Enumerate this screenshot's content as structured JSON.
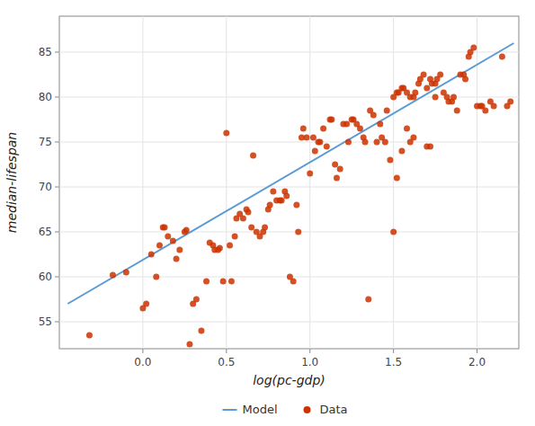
{
  "chart_data": {
    "type": "scatter",
    "xlabel": "log(pc-gdp)",
    "ylabel": "median-lifespan",
    "xlim": [
      -0.5,
      2.25
    ],
    "ylim": [
      52,
      89
    ],
    "xticks": [
      {
        "value": 0.0,
        "label": "0.0"
      },
      0.5,
      {
        "value": 1.0,
        "label": "1.0"
      },
      1.5,
      {
        "value": 2.0,
        "label": "2.0"
      }
    ],
    "yticks": [
      55,
      60,
      65,
      70,
      75,
      80,
      85
    ],
    "grid": true,
    "legend": "bottom",
    "series": [
      {
        "name": "Model",
        "type": "line",
        "color": "#5b9bd5",
        "x": [
          -0.45,
          2.22
        ],
        "values": [
          57.0,
          86.0
        ]
      },
      {
        "name": "Data",
        "type": "scatter",
        "marker": "circle",
        "color": "#cc3300",
        "x": [
          -0.32,
          -0.18,
          -0.1,
          0.0,
          0.02,
          0.05,
          0.08,
          0.1,
          0.12,
          0.13,
          0.15,
          0.18,
          0.2,
          0.22,
          0.25,
          0.26,
          0.28,
          0.3,
          0.32,
          0.35,
          0.38,
          0.4,
          0.42,
          0.43,
          0.45,
          0.46,
          0.48,
          0.5,
          0.52,
          0.53,
          0.55,
          0.56,
          0.58,
          0.6,
          0.62,
          0.63,
          0.65,
          0.66,
          0.68,
          0.7,
          0.72,
          0.73,
          0.75,
          0.76,
          0.78,
          0.8,
          0.82,
          0.83,
          0.85,
          0.86,
          0.88,
          0.9,
          0.92,
          0.93,
          0.95,
          0.96,
          0.98,
          1.0,
          1.02,
          1.03,
          1.05,
          1.06,
          1.08,
          1.1,
          1.12,
          1.13,
          1.15,
          1.16,
          1.18,
          1.2,
          1.22,
          1.23,
          1.25,
          1.26,
          1.28,
          1.3,
          1.32,
          1.33,
          1.35,
          1.36,
          1.38,
          1.4,
          1.42,
          1.43,
          1.45,
          1.46,
          1.48,
          1.5,
          1.52,
          1.53,
          1.55,
          1.56,
          1.58,
          1.6,
          1.62,
          1.63,
          1.65,
          1.66,
          1.68,
          1.7,
          1.72,
          1.73,
          1.75,
          1.76,
          1.78,
          1.5,
          1.52,
          1.55,
          1.58,
          1.6,
          1.62,
          1.7,
          1.72,
          1.75,
          1.8,
          1.82,
          1.83,
          1.85,
          1.86,
          1.88,
          1.9,
          1.92,
          1.93,
          1.95,
          1.96,
          1.98,
          2.0,
          2.02,
          2.03,
          2.05,
          2.08,
          2.1,
          2.15,
          2.18,
          2.2
        ],
        "values": [
          53.5,
          60.2,
          60.5,
          56.5,
          57.0,
          62.5,
          60.0,
          63.5,
          65.5,
          65.5,
          64.5,
          64.0,
          62.0,
          63.0,
          65.0,
          65.2,
          52.5,
          57.0,
          57.5,
          54.0,
          59.5,
          63.8,
          63.5,
          63.0,
          63.0,
          63.2,
          59.5,
          76.0,
          63.5,
          59.5,
          64.5,
          66.5,
          67.0,
          66.5,
          67.5,
          67.2,
          65.5,
          73.5,
          65.0,
          64.5,
          65.0,
          65.5,
          67.5,
          68.0,
          69.5,
          68.5,
          68.5,
          68.5,
          69.5,
          69.0,
          60.0,
          59.5,
          68.0,
          65.0,
          75.5,
          76.5,
          75.5,
          71.5,
          75.5,
          74.0,
          75.0,
          75.0,
          76.5,
          74.5,
          77.5,
          77.5,
          72.5,
          71.0,
          72.0,
          77.0,
          77.0,
          75.0,
          77.5,
          77.5,
          77.0,
          76.5,
          75.5,
          75.0,
          57.5,
          78.5,
          78.0,
          75.0,
          77.0,
          75.5,
          75.0,
          78.5,
          73.0,
          80.0,
          80.5,
          80.5,
          81.0,
          81.0,
          80.5,
          80.0,
          80.0,
          80.5,
          81.5,
          82.0,
          82.5,
          81.0,
          82.0,
          81.5,
          81.5,
          82.0,
          82.5,
          65.0,
          71.0,
          74.0,
          76.5,
          75.0,
          75.5,
          74.5,
          74.5,
          80.0,
          80.5,
          80.0,
          79.5,
          79.5,
          80.0,
          78.5,
          82.5,
          82.5,
          82.0,
          84.5,
          85.0,
          85.5,
          79.0,
          79.0,
          79.0,
          78.5,
          79.5,
          79.0,
          84.5,
          79.0,
          79.5
        ]
      }
    ]
  }
}
